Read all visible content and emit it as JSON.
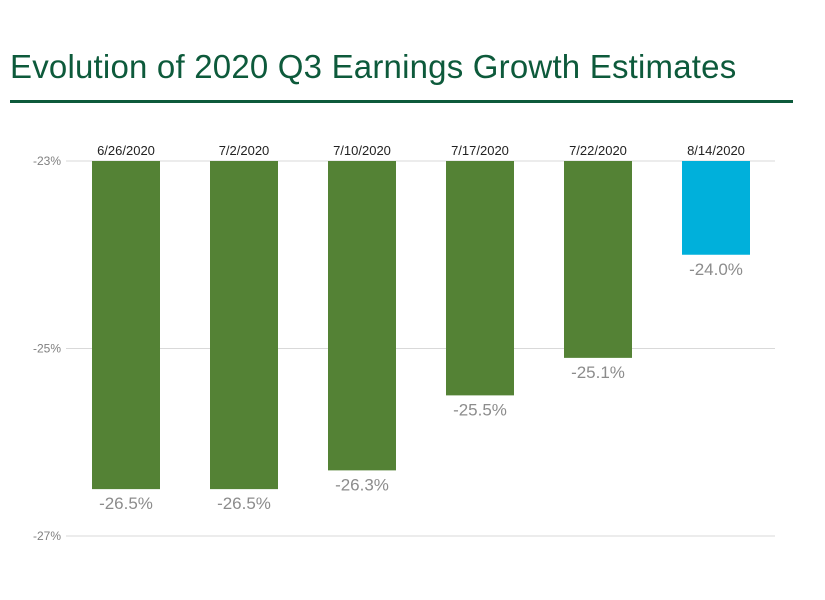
{
  "title": "Evolution of 2020 Q3 Earnings Growth Estimates",
  "chart_data": {
    "type": "bar",
    "title": "Evolution of 2020 Q3 Earnings Growth Estimates",
    "categories": [
      "6/26/2020",
      "7/2/2020",
      "7/10/2020",
      "7/17/2020",
      "7/22/2020",
      "8/14/2020"
    ],
    "values": [
      -26.5,
      -26.5,
      -26.3,
      -25.5,
      -25.1,
      -24.0
    ],
    "value_labels": [
      "-26.5%",
      "-26.5%",
      "-26.3%",
      "-25.5%",
      "-25.1%",
      "-24.0%"
    ],
    "ylim": [
      -27,
      -23
    ],
    "bar_base": -23,
    "y_ticks": [
      -23,
      -25,
      -27
    ],
    "y_tick_labels": [
      "-23%",
      "-25%",
      "-27%"
    ],
    "category_axis_position": "top",
    "grid": true,
    "xlabel": "",
    "ylabel": "",
    "colors": [
      "#548235",
      "#548235",
      "#548235",
      "#548235",
      "#548235",
      "#00b0db"
    ]
  },
  "colors": {
    "title": "#0d5a3b",
    "rule": "#0d5a3b",
    "grid": "#d9d9d9",
    "bar_default": "#548235",
    "bar_highlight": "#00b0db"
  }
}
